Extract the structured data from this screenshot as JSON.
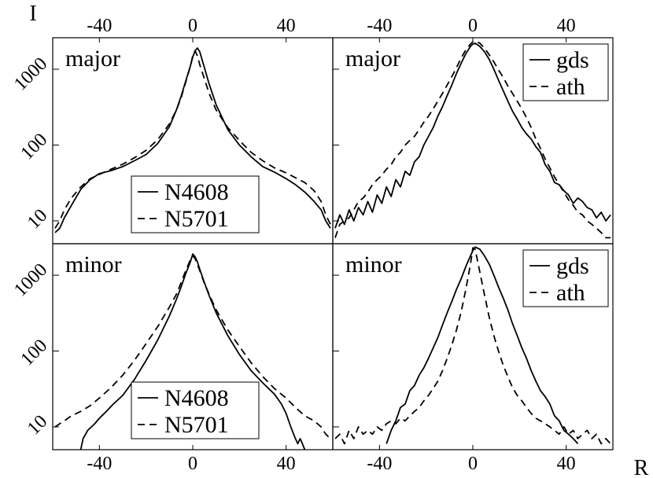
{
  "figure": {
    "y_axis_label": "I",
    "x_axis_label": "R"
  },
  "chart_data": [
    {
      "type": "line",
      "panel": "top-left",
      "label": "major",
      "x_scale": "linear",
      "y_scale": "log",
      "xlim": [
        -60,
        60
      ],
      "ylim": [
        5,
        2600
      ],
      "xticks": [
        -40,
        0,
        40
      ],
      "yticks": [
        10,
        100,
        1000
      ],
      "legend": {
        "placement": "bottom-right",
        "entries": [
          "N4608",
          "N5701"
        ]
      },
      "series": [
        {
          "name": "N4608",
          "style": "solid",
          "x": [
            -59,
            -57,
            -55,
            -52,
            -48,
            -44,
            -40,
            -35,
            -30,
            -25,
            -20,
            -15,
            -10,
            -7,
            -5,
            -3,
            -1,
            0,
            1,
            2,
            3,
            5,
            7,
            10,
            15,
            20,
            25,
            30,
            35,
            40,
            44,
            48,
            52,
            55,
            57,
            59
          ],
          "y": [
            7,
            8,
            11,
            16,
            26,
            35,
            42,
            46,
            52,
            62,
            75,
            105,
            175,
            290,
            440,
            700,
            1100,
            1450,
            1750,
            1900,
            1700,
            1050,
            640,
            340,
            160,
            100,
            70,
            52,
            44,
            36,
            30,
            24,
            18,
            14,
            10,
            8
          ]
        },
        {
          "name": "N5701",
          "style": "dashed",
          "x": [
            -59,
            -57,
            -55,
            -52,
            -48,
            -44,
            -40,
            -35,
            -30,
            -25,
            -20,
            -15,
            -10,
            -7,
            -5,
            -3,
            -1,
            0,
            1,
            2,
            3,
            5,
            7,
            10,
            15,
            20,
            25,
            30,
            35,
            40,
            44,
            48,
            52,
            55,
            57,
            59
          ],
          "y": [
            8,
            10,
            14,
            20,
            28,
            36,
            41,
            48,
            56,
            68,
            85,
            118,
            190,
            290,
            420,
            680,
            1100,
            1500,
            1750,
            1500,
            1150,
            750,
            480,
            290,
            170,
            115,
            80,
            62,
            50,
            43,
            37,
            32,
            25,
            18,
            12,
            9
          ]
        }
      ]
    },
    {
      "type": "line",
      "panel": "top-right",
      "label": "major",
      "x_scale": "linear",
      "y_scale": "log",
      "xlim": [
        -60,
        60
      ],
      "ylim": [
        5,
        2600
      ],
      "xticks": [
        -40,
        0,
        40
      ],
      "yticks": [
        10,
        100,
        1000
      ],
      "legend": {
        "placement": "top-right",
        "entries": [
          "gds",
          "ath"
        ]
      },
      "series": [
        {
          "name": "gds",
          "style": "solid",
          "x": [
            -59,
            -57,
            -55,
            -53,
            -51,
            -49,
            -47,
            -45,
            -43,
            -41,
            -39,
            -37,
            -35,
            -33,
            -31,
            -29,
            -27,
            -25,
            -23,
            -21,
            -19,
            -17,
            -15,
            -13,
            -11,
            -9,
            -7,
            -5,
            -3,
            -1,
            0,
            1,
            3,
            5,
            7,
            9,
            11,
            13,
            15,
            17,
            19,
            21,
            23,
            25,
            27,
            29,
            31,
            33,
            35,
            37,
            39,
            41,
            43,
            45,
            47,
            49,
            51,
            53,
            55,
            57,
            59
          ],
          "y": [
            8,
            12,
            9,
            14,
            10,
            15,
            12,
            18,
            13,
            22,
            17,
            28,
            21,
            35,
            28,
            45,
            40,
            60,
            70,
            100,
            130,
            170,
            240,
            320,
            450,
            620,
            880,
            1200,
            1600,
            2000,
            2150,
            2200,
            2000,
            1700,
            1350,
            1000,
            720,
            520,
            380,
            280,
            220,
            170,
            140,
            120,
            95,
            80,
            55,
            45,
            32,
            30,
            25,
            22,
            17,
            20,
            18,
            15,
            14,
            11,
            13,
            10,
            12
          ]
        },
        {
          "name": "ath",
          "style": "dashed",
          "x": [
            -59,
            -57,
            -55,
            -53,
            -51,
            -49,
            -47,
            -45,
            -43,
            -41,
            -39,
            -37,
            -35,
            -33,
            -31,
            -29,
            -27,
            -25,
            -23,
            -21,
            -19,
            -17,
            -15,
            -13,
            -11,
            -9,
            -7,
            -5,
            -3,
            -1,
            0,
            1,
            3,
            5,
            7,
            9,
            11,
            13,
            15,
            17,
            19,
            21,
            23,
            25,
            27,
            29,
            31,
            33,
            35,
            37,
            39,
            41,
            43,
            45,
            47,
            49,
            51,
            53,
            55,
            57,
            59
          ],
          "y": [
            6,
            9,
            10,
            11,
            14,
            18,
            20,
            24,
            30,
            35,
            40,
            48,
            55,
            70,
            80,
            100,
            115,
            130,
            160,
            200,
            240,
            300,
            380,
            480,
            620,
            800,
            1050,
            1400,
            1800,
            2150,
            2300,
            2350,
            2200,
            1900,
            1550,
            1250,
            980,
            780,
            600,
            480,
            380,
            300,
            230,
            170,
            120,
            90,
            65,
            50,
            38,
            30,
            24,
            19,
            16,
            13,
            12,
            10,
            9,
            8,
            7,
            6,
            6
          ]
        }
      ]
    },
    {
      "type": "line",
      "panel": "bottom-left",
      "label": "minor",
      "x_scale": "linear",
      "y_scale": "log",
      "xlim": [
        -60,
        60
      ],
      "ylim": [
        5,
        2600
      ],
      "xticks": [
        -40,
        0,
        40
      ],
      "yticks": [
        10,
        100,
        1000
      ],
      "legend": {
        "placement": "bottom-right",
        "entries": [
          "N4608",
          "N5701"
        ]
      },
      "series": [
        {
          "name": "N4608",
          "style": "solid",
          "x": [
            -48,
            -47,
            -45,
            -42,
            -40,
            -37,
            -34,
            -30,
            -25,
            -20,
            -15,
            -10,
            -7,
            -5,
            -3,
            -1,
            0,
            1,
            2,
            3,
            5,
            7,
            10,
            15,
            20,
            25,
            30,
            35,
            38,
            40,
            42,
            44,
            45,
            46,
            47,
            48
          ],
          "y": [
            5,
            7,
            9,
            11,
            13,
            16,
            20,
            26,
            42,
            75,
            140,
            290,
            480,
            700,
            1050,
            1500,
            1900,
            1750,
            1500,
            1200,
            800,
            540,
            320,
            160,
            90,
            55,
            38,
            27,
            20,
            15,
            10,
            7,
            6,
            7,
            6,
            5
          ]
        },
        {
          "name": "N5701",
          "style": "dashed",
          "x": [
            -59,
            -57,
            -55,
            -52,
            -48,
            -44,
            -40,
            -35,
            -30,
            -25,
            -20,
            -15,
            -10,
            -7,
            -5,
            -3,
            -1,
            0,
            1,
            3,
            5,
            7,
            10,
            15,
            20,
            25,
            30,
            35,
            40,
            44,
            48,
            52,
            55,
            57,
            59
          ],
          "y": [
            10,
            11,
            12,
            14,
            16,
            19,
            24,
            33,
            48,
            75,
            125,
            210,
            380,
            560,
            800,
            1150,
            1600,
            1800,
            1650,
            1150,
            780,
            560,
            350,
            190,
            115,
            70,
            46,
            32,
            24,
            18,
            14,
            12,
            10,
            8,
            7
          ]
        }
      ]
    },
    {
      "type": "line",
      "panel": "bottom-right",
      "label": "minor",
      "x_scale": "linear",
      "y_scale": "log",
      "xlim": [
        -60,
        60
      ],
      "ylim": [
        5,
        2600
      ],
      "xticks": [
        -40,
        0,
        40
      ],
      "yticks": [
        10,
        100,
        1000
      ],
      "legend": {
        "placement": "top-right",
        "entries": [
          "gds",
          "ath"
        ]
      },
      "series": [
        {
          "name": "gds",
          "style": "solid",
          "x": [
            -37,
            -35,
            -33,
            -31,
            -29,
            -27,
            -25,
            -23,
            -21,
            -19,
            -17,
            -15,
            -13,
            -11,
            -9,
            -7,
            -5,
            -3,
            -1,
            0,
            1,
            3,
            5,
            7,
            9,
            11,
            13,
            15,
            17,
            19,
            21,
            23,
            25,
            27,
            29,
            31,
            33,
            35,
            37,
            39,
            41,
            43,
            45
          ],
          "y": [
            6,
            9,
            12,
            18,
            20,
            30,
            35,
            48,
            60,
            80,
            110,
            150,
            220,
            320,
            450,
            650,
            900,
            1300,
            1800,
            2100,
            2350,
            2200,
            1800,
            1400,
            1000,
            700,
            500,
            350,
            230,
            160,
            110,
            80,
            55,
            40,
            30,
            25,
            20,
            14,
            12,
            9,
            8,
            7,
            6
          ]
        },
        {
          "name": "ath",
          "style": "dashed",
          "x": [
            -59,
            -57,
            -55,
            -53,
            -51,
            -49,
            -47,
            -45,
            -43,
            -41,
            -39,
            -37,
            -35,
            -33,
            -31,
            -29,
            -27,
            -25,
            -23,
            -21,
            -19,
            -17,
            -15,
            -13,
            -11,
            -9,
            -7,
            -5,
            -3,
            -1,
            0,
            1,
            3,
            5,
            7,
            9,
            11,
            13,
            15,
            17,
            19,
            21,
            23,
            25,
            27,
            29,
            31,
            33,
            35,
            37,
            39,
            41,
            43,
            45,
            47,
            49,
            51,
            53,
            55,
            57,
            59
          ],
          "y": [
            7,
            8,
            6,
            9,
            7,
            10,
            8,
            9,
            8,
            10,
            9,
            11,
            12,
            11,
            13,
            12,
            14,
            16,
            18,
            22,
            26,
            32,
            40,
            55,
            80,
            120,
            190,
            330,
            650,
            1400,
            2300,
            2200,
            1100,
            550,
            280,
            160,
            100,
            65,
            46,
            33,
            26,
            22,
            18,
            15,
            13,
            12,
            11,
            10,
            9,
            8,
            10,
            8,
            9,
            7,
            8,
            9,
            7,
            8,
            6,
            7,
            6
          ]
        }
      ]
    }
  ]
}
